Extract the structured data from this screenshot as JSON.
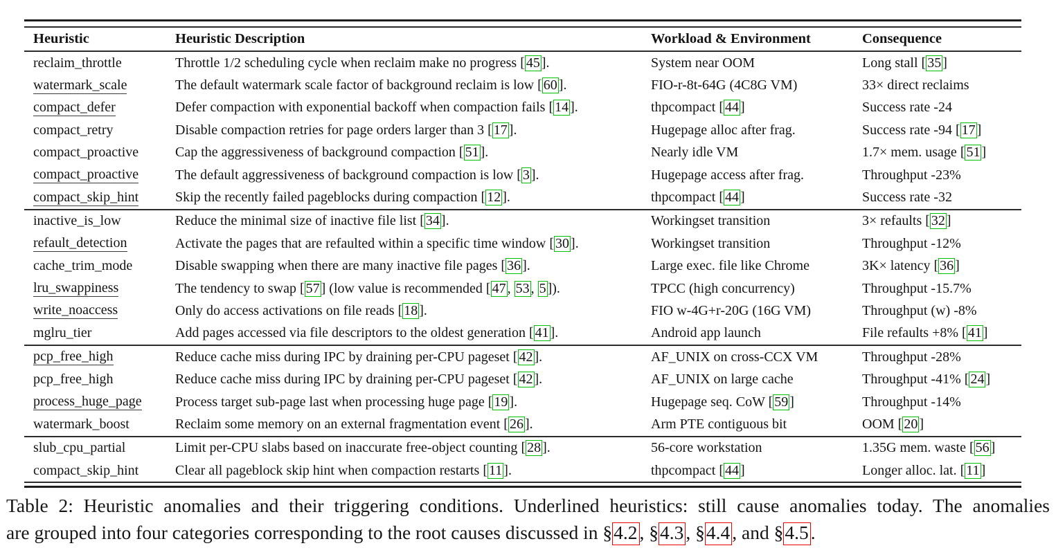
{
  "colors": {
    "cite_box_green": "#00c000",
    "ref_box_red": "#ee0000"
  },
  "table": {
    "columns": [
      "Heuristic",
      "Heuristic Description",
      "Workload & Environment",
      "Consequence"
    ],
    "groups": [
      {
        "rows": [
          {
            "heuristic": "reclaim_throttle",
            "underlined": false,
            "description": [
              [
                "t",
                "Throttle 1/2 scheduling cycle when reclaim make no progress "
              ],
              [
                "c",
                "45"
              ],
              [
                "t",
                "."
              ]
            ],
            "workload": [
              [
                "t",
                "System near OOM"
              ]
            ],
            "consequence": [
              [
                "t",
                "Long stall "
              ],
              [
                "c",
                "35"
              ]
            ]
          },
          {
            "heuristic": "watermark_scale",
            "underlined": true,
            "description": [
              [
                "t",
                "The default watermark scale factor of background reclaim is low "
              ],
              [
                "c",
                "60"
              ],
              [
                "t",
                "."
              ]
            ],
            "workload": [
              [
                "t",
                "FIO-r-8t-64G (4C8G VM)"
              ]
            ],
            "consequence": [
              [
                "t",
                "33× direct reclaims"
              ]
            ]
          },
          {
            "heuristic": "compact_defer",
            "underlined": true,
            "description": [
              [
                "t",
                "Defer compaction with exponential backoff when compaction fails "
              ],
              [
                "c",
                "14"
              ],
              [
                "t",
                "."
              ]
            ],
            "workload": [
              [
                "t",
                "thpcompact "
              ],
              [
                "c",
                "44"
              ]
            ],
            "consequence": [
              [
                "t",
                "Success rate -24"
              ]
            ]
          },
          {
            "heuristic": "compact_retry",
            "underlined": false,
            "description": [
              [
                "t",
                "Disable compaction retries for page orders larger than 3 "
              ],
              [
                "c",
                "17"
              ],
              [
                "t",
                "."
              ]
            ],
            "workload": [
              [
                "t",
                "Hugepage alloc after frag."
              ]
            ],
            "consequence": [
              [
                "t",
                "Success rate -94 "
              ],
              [
                "c",
                "17"
              ]
            ]
          },
          {
            "heuristic": "compact_proactive",
            "underlined": false,
            "description": [
              [
                "t",
                "Cap the aggressiveness of background compaction "
              ],
              [
                "c",
                "51"
              ],
              [
                "t",
                "."
              ]
            ],
            "workload": [
              [
                "t",
                "Nearly idle VM"
              ]
            ],
            "consequence": [
              [
                "t",
                "1.7× mem. usage "
              ],
              [
                "c",
                "51"
              ]
            ]
          },
          {
            "heuristic": "compact_proactive",
            "underlined": true,
            "description": [
              [
                "t",
                "The default aggressiveness of background compaction is low "
              ],
              [
                "c",
                "3"
              ],
              [
                "t",
                "."
              ]
            ],
            "workload": [
              [
                "t",
                "Hugepage access after frag."
              ]
            ],
            "consequence": [
              [
                "t",
                "Throughput -23%"
              ]
            ]
          },
          {
            "heuristic": "compact_skip_hint",
            "underlined": true,
            "description": [
              [
                "t",
                "Skip the recently failed pageblocks during compaction "
              ],
              [
                "c",
                "12"
              ],
              [
                "t",
                "."
              ]
            ],
            "workload": [
              [
                "t",
                "thpcompact "
              ],
              [
                "c",
                "44"
              ]
            ],
            "consequence": [
              [
                "t",
                "Success rate -32"
              ]
            ]
          }
        ]
      },
      {
        "rows": [
          {
            "heuristic": "inactive_is_low",
            "underlined": false,
            "description": [
              [
                "t",
                "Reduce the minimal size of inactive file list "
              ],
              [
                "c",
                "34"
              ],
              [
                "t",
                "."
              ]
            ],
            "workload": [
              [
                "t",
                "Workingset transition"
              ]
            ],
            "consequence": [
              [
                "t",
                "3× refaults "
              ],
              [
                "c",
                "32"
              ]
            ]
          },
          {
            "heuristic": "refault_detection",
            "underlined": true,
            "description": [
              [
                "t",
                "Activate the pages that are refaulted within a specific time window "
              ],
              [
                "c",
                "30"
              ],
              [
                "t",
                "."
              ]
            ],
            "workload": [
              [
                "t",
                "Workingset transition"
              ]
            ],
            "consequence": [
              [
                "t",
                "Throughput -12%"
              ]
            ]
          },
          {
            "heuristic": "cache_trim_mode",
            "underlined": false,
            "description": [
              [
                "t",
                "Disable swapping when there are many inactive file pages "
              ],
              [
                "c",
                "36"
              ],
              [
                "t",
                "."
              ]
            ],
            "workload": [
              [
                "t",
                "Large exec. file like Chrome"
              ]
            ],
            "consequence": [
              [
                "t",
                "3K× latency "
              ],
              [
                "c",
                "36"
              ]
            ]
          },
          {
            "heuristic": "lru_swappiness",
            "underlined": true,
            "description": [
              [
                "t",
                "The tendency to swap "
              ],
              [
                "c",
                "57"
              ],
              [
                "t",
                " (low value is recommended ["
              ],
              [
                "n",
                "47"
              ],
              [
                "t",
                ", "
              ],
              [
                "n",
                "53"
              ],
              [
                "t",
                ", "
              ],
              [
                "n",
                "5"
              ],
              [
                "t",
                "])."
              ]
            ],
            "workload": [
              [
                "t",
                "TPCC (high concurrency)"
              ]
            ],
            "consequence": [
              [
                "t",
                "Throughput -15.7%"
              ]
            ]
          },
          {
            "heuristic": "write_noaccess",
            "underlined": true,
            "description": [
              [
                "t",
                "Only do access activations on file reads "
              ],
              [
                "c",
                "18"
              ],
              [
                "t",
                "."
              ]
            ],
            "workload": [
              [
                "t",
                "FIO w-4G+r-20G (16G VM)"
              ]
            ],
            "consequence": [
              [
                "t",
                "Throughput (w) -8%"
              ]
            ]
          },
          {
            "heuristic": "mglru_tier",
            "underlined": false,
            "description": [
              [
                "t",
                "Add pages accessed via file descriptors to the oldest generation "
              ],
              [
                "c",
                "41"
              ],
              [
                "t",
                "."
              ]
            ],
            "workload": [
              [
                "t",
                "Android app launch"
              ]
            ],
            "consequence": [
              [
                "t",
                "File refaults +8% "
              ],
              [
                "c",
                "41"
              ]
            ]
          }
        ]
      },
      {
        "rows": [
          {
            "heuristic": "pcp_free_high",
            "underlined": true,
            "description": [
              [
                "t",
                "Reduce cache miss during IPC by draining per-CPU pageset "
              ],
              [
                "c",
                "42"
              ],
              [
                "t",
                "."
              ]
            ],
            "workload": [
              [
                "t",
                "AF_UNIX on cross-CCX VM"
              ]
            ],
            "consequence": [
              [
                "t",
                "Throughput -28%"
              ]
            ]
          },
          {
            "heuristic": "pcp_free_high",
            "underlined": false,
            "description": [
              [
                "t",
                "Reduce cache miss during IPC by draining per-CPU pageset "
              ],
              [
                "c",
                "42"
              ],
              [
                "t",
                "."
              ]
            ],
            "workload": [
              [
                "t",
                "AF_UNIX on large cache"
              ]
            ],
            "consequence": [
              [
                "t",
                "Throughput -41% "
              ],
              [
                "c",
                "24"
              ]
            ]
          },
          {
            "heuristic": "process_huge_page",
            "underlined": true,
            "description": [
              [
                "t",
                "Process target sub-page last when processing huge page "
              ],
              [
                "c",
                "19"
              ],
              [
                "t",
                "."
              ]
            ],
            "workload": [
              [
                "t",
                "Hugepage seq. CoW "
              ],
              [
                "c",
                "59"
              ]
            ],
            "consequence": [
              [
                "t",
                "Throughput -14%"
              ]
            ]
          },
          {
            "heuristic": "watermark_boost",
            "underlined": false,
            "description": [
              [
                "t",
                "Reclaim some memory on an external fragmentation event "
              ],
              [
                "c",
                "26"
              ],
              [
                "t",
                "."
              ]
            ],
            "workload": [
              [
                "t",
                "Arm PTE contiguous bit"
              ]
            ],
            "consequence": [
              [
                "t",
                "OOM "
              ],
              [
                "c",
                "20"
              ]
            ]
          }
        ]
      },
      {
        "rows": [
          {
            "heuristic": "slub_cpu_partial",
            "underlined": false,
            "description": [
              [
                "t",
                "Limit per-CPU slabs based on inaccurate free-object counting "
              ],
              [
                "c",
                "28"
              ],
              [
                "t",
                "."
              ]
            ],
            "workload": [
              [
                "t",
                "56-core workstation"
              ]
            ],
            "consequence": [
              [
                "t",
                "1.35G mem. waste "
              ],
              [
                "c",
                "56"
              ]
            ]
          },
          {
            "heuristic": "compact_skip_hint",
            "underlined": false,
            "description": [
              [
                "t",
                "Clear all pageblock skip hint when compaction restarts "
              ],
              [
                "c",
                "11"
              ],
              [
                "t",
                "."
              ]
            ],
            "workload": [
              [
                "t",
                "thpcompact "
              ],
              [
                "c",
                "44"
              ]
            ],
            "consequence": [
              [
                "t",
                "Longer alloc. lat. "
              ],
              [
                "c",
                "11"
              ]
            ]
          }
        ]
      }
    ]
  },
  "caption": {
    "line1": "Table 2: Heuristic anomalies and their triggering conditions. Underlined heuristics: still cause anomalies today. The anomalies",
    "line2_segments": [
      [
        "t",
        "are grouped into four categories corresponding to the root causes discussed in §"
      ],
      [
        "r",
        "4.2"
      ],
      [
        "t",
        ", §"
      ],
      [
        "r",
        "4.3"
      ],
      [
        "t",
        ", §"
      ],
      [
        "r",
        "4.4"
      ],
      [
        "t",
        ", and §"
      ],
      [
        "r",
        "4.5"
      ],
      [
        "t",
        "."
      ]
    ]
  }
}
